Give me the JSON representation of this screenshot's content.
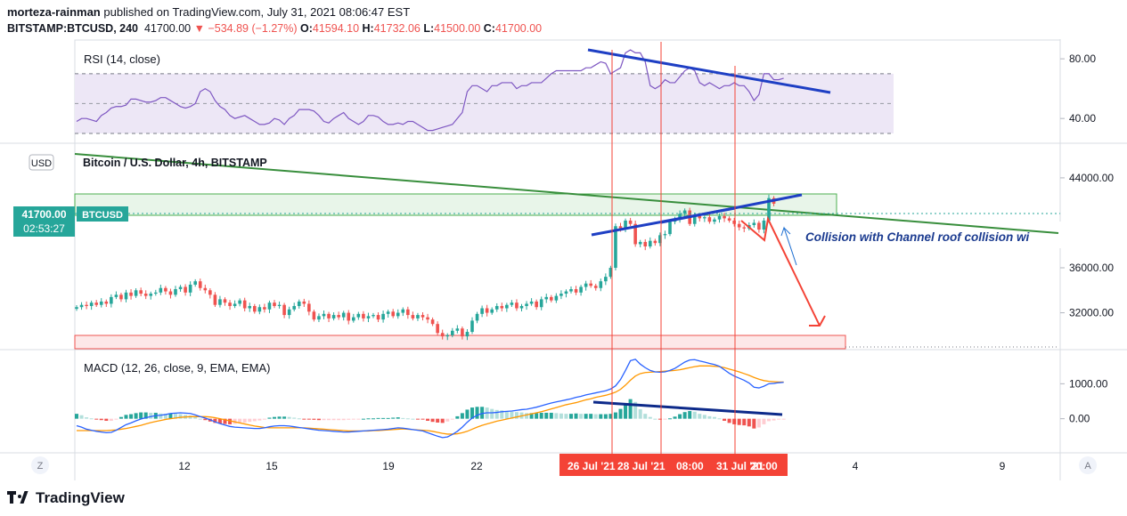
{
  "header": {
    "author": "morteza-rainman",
    "published_text": "published on TradingView.com, July 31, 2021 08:06:47 EST",
    "symbol": "BITSTAMP:BTCUSD, 240",
    "last_price": "41700.00",
    "change": "▼ −534.89 (−1.27%)",
    "open_label": "O:",
    "open": "41594.10",
    "high_label": "H:",
    "high": "41732.06",
    "low_label": "L:",
    "low": "41500.00",
    "close_label": "C:",
    "close": "41700.00"
  },
  "footer": {
    "brand": "TradingView"
  },
  "colors": {
    "up": "#26a69a",
    "down": "#ef5350",
    "rsi": "#7e57c2",
    "rsi_band": "#ede7f6",
    "macd": "#2962ff",
    "signal": "#ff9800",
    "trend_blue": "#1e3fc4",
    "trend_green": "#388e3c",
    "annotation_red": "#f44336",
    "annotation_text": "#1a3a8f",
    "badge": "#26a69a",
    "time_badge": "#f44336"
  },
  "chart_data": [
    {
      "type": "line",
      "panel": "rsi",
      "title": "RSI (14, close)",
      "y_ticks": [
        80,
        40
      ],
      "y_tick_labels": [
        "80.00",
        "40.00"
      ],
      "bands": [
        70,
        50,
        30
      ],
      "ylim": [
        24,
        92
      ],
      "series": [
        {
          "values": [
            38,
            40,
            40,
            39,
            38,
            42,
            44,
            47,
            48,
            48,
            49,
            53,
            53,
            52,
            51,
            51,
            52,
            54,
            54,
            52,
            50,
            48,
            47,
            48,
            50,
            58,
            60,
            58,
            52,
            48,
            46,
            42,
            40,
            41,
            42,
            40,
            38,
            36,
            36,
            37,
            40,
            39,
            36,
            40,
            42,
            46,
            46,
            46,
            45,
            42,
            38,
            37,
            40,
            42,
            44,
            40,
            38,
            36,
            38,
            42,
            42,
            41,
            38,
            36,
            36,
            37,
            36,
            38,
            38,
            36,
            34,
            32,
            32,
            33,
            34,
            35,
            36,
            40,
            44,
            58,
            62,
            62,
            60,
            58,
            62,
            62,
            64,
            64,
            64,
            60,
            62,
            62,
            64,
            64,
            64,
            67,
            70,
            72,
            72,
            72,
            72,
            72,
            72,
            74,
            74,
            76,
            78,
            77,
            70,
            72,
            74,
            84,
            86,
            84,
            84,
            78,
            62,
            60,
            62,
            66,
            64,
            64,
            68,
            72,
            74,
            72,
            64,
            62,
            64,
            62,
            60,
            62,
            62,
            64,
            62,
            62,
            58,
            52,
            56,
            70,
            70,
            66,
            66,
            67
          ]
        }
      ]
    },
    {
      "type": "candlestick",
      "panel": "price",
      "title": "Bitcoin / U.S. Dollar, 4h, BITSTAMP",
      "currency": "USD",
      "y_ticks": [
        44000,
        36000,
        32000
      ],
      "y_tick_labels": [
        "44000.00",
        "36000.00",
        "32000.00"
      ],
      "ylim": [
        28800,
        47000
      ],
      "price_badge": {
        "value": 41700,
        "label": "41700.00",
        "countdown": "02:53:27",
        "symbol": "BTCUSD"
      },
      "series": [
        {
          "name": "BTCUSD",
          "values": [
            32500,
            32700,
            32600,
            32900,
            32700,
            33000,
            32800,
            33400,
            33600,
            33200,
            33800,
            33500,
            34000,
            33700,
            33500,
            33700,
            33800,
            34200,
            33900,
            33600,
            34100,
            34300,
            33800,
            34500,
            34800,
            34200,
            34000,
            33600,
            32700,
            33200,
            32900,
            32600,
            32800,
            33100,
            32400,
            32600,
            32100,
            32500,
            32300,
            32900,
            32600,
            32700,
            31800,
            32300,
            32600,
            33000,
            32800,
            32100,
            31400,
            31700,
            31900,
            31500,
            31800,
            31600,
            32000,
            31300,
            31600,
            31900,
            31500,
            31700,
            31800,
            31400,
            31900,
            32100,
            31700,
            32000,
            32300,
            31800,
            31500,
            31800,
            31600,
            31400,
            31000,
            30200,
            29900,
            30000,
            30400,
            30600,
            29900,
            30300,
            31300,
            31900,
            32400,
            32000,
            32300,
            32600,
            32400,
            32700,
            32900,
            32400,
            32600,
            32800,
            33000,
            32500,
            33200,
            33400,
            33100,
            33500,
            33700,
            33900,
            34100,
            33800,
            34300,
            34600,
            34400,
            34200,
            34800,
            35200,
            36000,
            39700,
            39500,
            40200,
            39900,
            38100,
            38300,
            37900,
            38400,
            38200,
            38900,
            39000,
            40100,
            40300,
            40800,
            41100,
            39900,
            40600,
            40400,
            40500,
            40100,
            40300,
            40600,
            40400,
            40200,
            39900,
            39600,
            39500,
            39800,
            40000,
            39400,
            40200,
            42200,
            41700
          ]
        }
      ]
    },
    {
      "type": "line",
      "panel": "macd",
      "title": "MACD (12, 26, close, 9, EMA, EMA)",
      "y_ticks": [
        1000,
        0
      ],
      "y_tick_labels": [
        "1000.00",
        "0.00"
      ],
      "ylim": [
        -950,
        1950
      ],
      "series": [
        {
          "name": "MACD",
          "values": [
            -200,
            -240,
            -300,
            -330,
            -360,
            -380,
            -400,
            -390,
            -330,
            -250,
            -170,
            -120,
            -60,
            -10,
            30,
            60,
            90,
            100,
            120,
            150,
            160,
            170,
            160,
            150,
            110,
            60,
            20,
            -30,
            -90,
            -140,
            -180,
            -220,
            -240,
            -250,
            -260,
            -270,
            -280,
            -280,
            -260,
            -230,
            -210,
            -200,
            -200,
            -210,
            -230,
            -250,
            -270,
            -290,
            -310,
            -330,
            -340,
            -350,
            -360,
            -370,
            -380,
            -380,
            -370,
            -360,
            -350,
            -340,
            -330,
            -320,
            -310,
            -300,
            -280,
            -260,
            -270,
            -290,
            -310,
            -330,
            -350,
            -400,
            -450,
            -500,
            -540,
            -520,
            -450,
            -360,
            -240,
            -100,
            20,
            100,
            150,
            170,
            170,
            180,
            200,
            210,
            220,
            240,
            260,
            270,
            300,
            330,
            370,
            410,
            450,
            480,
            510,
            540,
            570,
            610,
            640,
            680,
            710,
            740,
            770,
            800,
            850,
            940,
            1120,
            1380,
            1660,
            1700,
            1560,
            1460,
            1380,
            1340,
            1330,
            1340,
            1380,
            1440,
            1530,
            1620,
            1680,
            1690,
            1650,
            1620,
            1580,
            1550,
            1500,
            1400,
            1300,
            1220,
            1160,
            1100,
            1020,
            900,
            880,
            930,
            1000,
            1010,
            1030,
            1040
          ]
        },
        {
          "name": "Signal",
          "values": [
            -340,
            -340,
            -340,
            -340,
            -340,
            -340,
            -340,
            -330,
            -320,
            -300,
            -280,
            -250,
            -220,
            -190,
            -150,
            -110,
            -80,
            -50,
            -20,
            0,
            20,
            40,
            50,
            60,
            60,
            60,
            60,
            50,
            30,
            0,
            -30,
            -60,
            -90,
            -120,
            -150,
            -180,
            -210,
            -230,
            -250,
            -260,
            -260,
            -260,
            -260,
            -260,
            -260,
            -260,
            -260,
            -270,
            -280,
            -290,
            -300,
            -310,
            -320,
            -330,
            -340,
            -350,
            -350,
            -350,
            -350,
            -350,
            -340,
            -340,
            -330,
            -320,
            -310,
            -300,
            -290,
            -300,
            -310,
            -320,
            -330,
            -340,
            -360,
            -390,
            -420,
            -440,
            -440,
            -430,
            -400,
            -360,
            -300,
            -240,
            -190,
            -150,
            -110,
            -70,
            -40,
            -10,
            20,
            50,
            80,
            110,
            140,
            170,
            200,
            240,
            280,
            320,
            360,
            400,
            430,
            460,
            500,
            540,
            570,
            610,
            640,
            670,
            710,
            760,
            840,
            960,
            1100,
            1220,
            1290,
            1320,
            1330,
            1340,
            1350,
            1360,
            1370,
            1380,
            1400,
            1430,
            1460,
            1490,
            1510,
            1510,
            1510,
            1500,
            1490,
            1460,
            1420,
            1380,
            1340,
            1290,
            1240,
            1180,
            1130,
            1090,
            1070,
            1060,
            1050,
            1050
          ]
        }
      ]
    }
  ],
  "time_axis": {
    "ticks": [
      "12",
      "15",
      "19",
      "22",
      "4",
      "9"
    ],
    "highlight_labels": [
      "26 Jul '21",
      "28 Jul '21",
      "08:00",
      "31 Jul '21",
      "20:00"
    ],
    "left_icon_label": "Z",
    "right_icon_label": "A"
  },
  "annotation": {
    "text": "Collision with Channel roof collision wi"
  }
}
